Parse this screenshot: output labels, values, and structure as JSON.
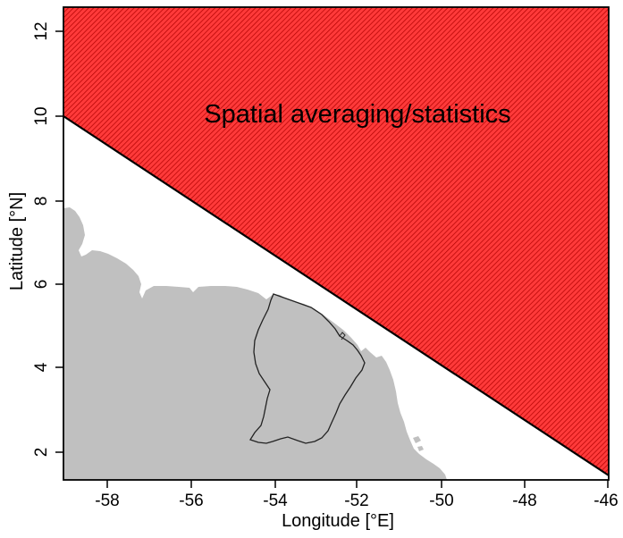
{
  "map": {
    "annotation": "Spatial averaging/statistics",
    "x_axis_label": "Longitude [°E]",
    "y_axis_label": "Latitude [°N]",
    "x_ticks": [
      "-58",
      "-56",
      "-54",
      "-52",
      "-50",
      "-48",
      "-46"
    ],
    "y_ticks": [
      "2",
      "4",
      "6",
      "8",
      "10",
      "12"
    ],
    "colors": {
      "region_fill": "#ff3a3a",
      "region_hatch": "#b00000",
      "land": "#c0c0c0",
      "border": "#222222",
      "frame": "#000000"
    }
  }
}
